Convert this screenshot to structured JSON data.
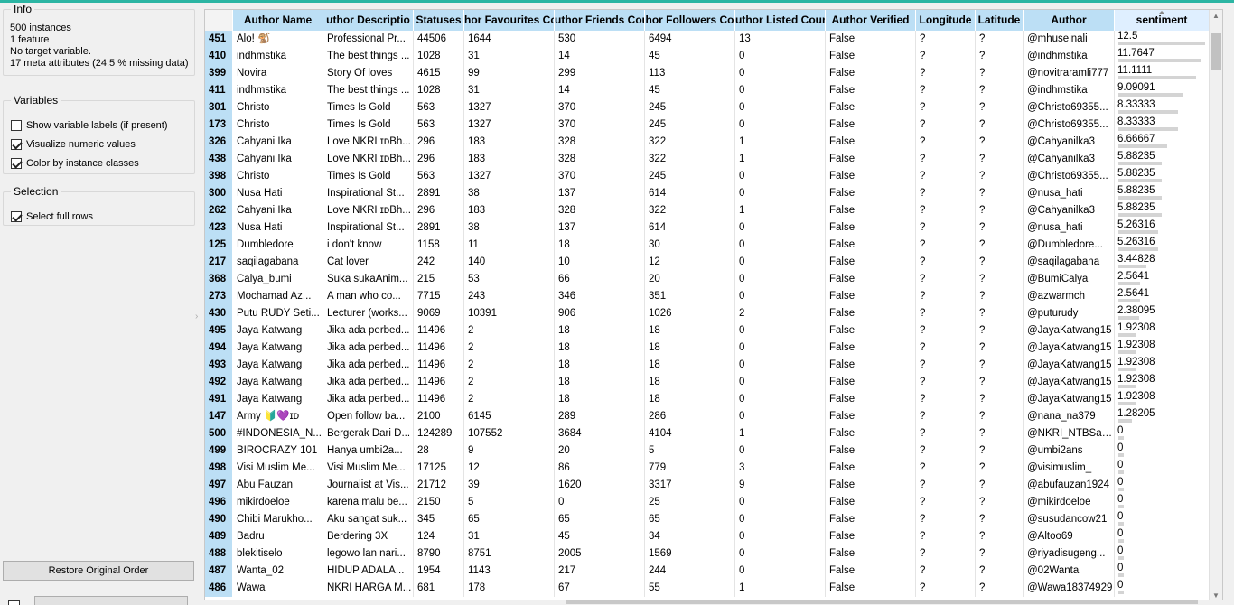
{
  "info": {
    "title": "Info",
    "lines": [
      "500 instances",
      "1 feature",
      "No target variable.",
      "17 meta attributes (24.5 % missing data)"
    ]
  },
  "variables": {
    "title": "Variables",
    "options": [
      {
        "label": "Show variable labels (if present)",
        "checked": false
      },
      {
        "label": "Visualize numeric values",
        "checked": true
      },
      {
        "label": "Color by instance classes",
        "checked": true
      }
    ]
  },
  "selection": {
    "title": "Selection",
    "options": [
      {
        "label": "Select full rows",
        "checked": true
      }
    ]
  },
  "buttons": {
    "restore": "Restore Original Order"
  },
  "table": {
    "columns": [
      "",
      "Author Name",
      "uthor Descriptio",
      "Statuses",
      "hor Favourites Co",
      "uthor Friends Cou",
      "hor Followers Co",
      "uthor Listed Coun",
      "Author Verified",
      "Longitude",
      "Latitude",
      "Author",
      "sentiment"
    ],
    "sentiment_max": 12.5,
    "rows": [
      [
        "451",
        "Alo! 🐒",
        "Professional Pr...",
        "44506",
        "1644",
        "530",
        "6494",
        "13",
        "False",
        "?",
        "?",
        "@mhuseinali",
        "12.5"
      ],
      [
        "410",
        "indhmstika",
        "The best things ...",
        "1028",
        "31",
        "14",
        "45",
        "0",
        "False",
        "?",
        "?",
        "@indhmstika",
        "11.7647"
      ],
      [
        "399",
        "Novira",
        "Story Of loves",
        "4615",
        "99",
        "299",
        "113",
        "0",
        "False",
        "?",
        "?",
        "@novitraramli777",
        "11.1111"
      ],
      [
        "411",
        "indhmstika",
        "The best things ...",
        "1028",
        "31",
        "14",
        "45",
        "0",
        "False",
        "?",
        "?",
        "@indhmstika",
        "9.09091"
      ],
      [
        "301",
        "Christo",
        "Times Is Gold",
        "563",
        "1327",
        "370",
        "245",
        "0",
        "False",
        "?",
        "?",
        "@Christo69355...",
        "8.33333"
      ],
      [
        "173",
        "Christo",
        "Times Is Gold",
        "563",
        "1327",
        "370",
        "245",
        "0",
        "False",
        "?",
        "?",
        "@Christo69355...",
        "8.33333"
      ],
      [
        "326",
        "Cahyani Ika",
        "Love NKRI ɪᴅBh...",
        "296",
        "183",
        "328",
        "322",
        "1",
        "False",
        "?",
        "?",
        "@Cahyanilka3",
        "6.66667"
      ],
      [
        "438",
        "Cahyani Ika",
        "Love NKRI ɪᴅBh...",
        "296",
        "183",
        "328",
        "322",
        "1",
        "False",
        "?",
        "?",
        "@Cahyanilka3",
        "5.88235"
      ],
      [
        "398",
        "Christo",
        "Times Is Gold",
        "563",
        "1327",
        "370",
        "245",
        "0",
        "False",
        "?",
        "?",
        "@Christo69355...",
        "5.88235"
      ],
      [
        "300",
        "Nusa Hati",
        "Inspirational St...",
        "2891",
        "38",
        "137",
        "614",
        "0",
        "False",
        "?",
        "?",
        "@nusa_hati",
        "5.88235"
      ],
      [
        "262",
        "Cahyani Ika",
        "Love NKRI ɪᴅBh...",
        "296",
        "183",
        "328",
        "322",
        "1",
        "False",
        "?",
        "?",
        "@Cahyanilka3",
        "5.88235"
      ],
      [
        "423",
        "Nusa Hati",
        "Inspirational St...",
        "2891",
        "38",
        "137",
        "614",
        "0",
        "False",
        "?",
        "?",
        "@nusa_hati",
        "5.26316"
      ],
      [
        "125",
        "Dumbledore",
        "i don't know",
        "1158",
        "11",
        "18",
        "30",
        "0",
        "False",
        "?",
        "?",
        "@Dumbledore...",
        "5.26316"
      ],
      [
        "217",
        "saqilagabana",
        "Cat lover",
        "242",
        "140",
        "10",
        "12",
        "0",
        "False",
        "?",
        "?",
        "@saqilagabana",
        "3.44828"
      ],
      [
        "368",
        "Calya_bumi",
        "Suka sukaAnim...",
        "215",
        "53",
        "66",
        "20",
        "0",
        "False",
        "?",
        "?",
        "@BumiCalya",
        "2.5641"
      ],
      [
        "273",
        "Mochamad Az...",
        "A man who co...",
        "7715",
        "243",
        "346",
        "351",
        "0",
        "False",
        "?",
        "?",
        "@azwarmch",
        "2.5641"
      ],
      [
        "430",
        "Putu RUDY Seti...",
        "Lecturer (works...",
        "9069",
        "10391",
        "906",
        "1026",
        "2",
        "False",
        "?",
        "?",
        "@puturudy",
        "2.38095"
      ],
      [
        "495",
        "Jaya Katwang",
        "Jika ada perbed...",
        "11496",
        "2",
        "18",
        "18",
        "0",
        "False",
        "?",
        "?",
        "@JayaKatwang15",
        "1.92308"
      ],
      [
        "494",
        "Jaya Katwang",
        "Jika ada perbed...",
        "11496",
        "2",
        "18",
        "18",
        "0",
        "False",
        "?",
        "?",
        "@JayaKatwang15",
        "1.92308"
      ],
      [
        "493",
        "Jaya Katwang",
        "Jika ada perbed...",
        "11496",
        "2",
        "18",
        "18",
        "0",
        "False",
        "?",
        "?",
        "@JayaKatwang15",
        "1.92308"
      ],
      [
        "492",
        "Jaya Katwang",
        "Jika ada perbed...",
        "11496",
        "2",
        "18",
        "18",
        "0",
        "False",
        "?",
        "?",
        "@JayaKatwang15",
        "1.92308"
      ],
      [
        "491",
        "Jaya Katwang",
        "Jika ada perbed...",
        "11496",
        "2",
        "18",
        "18",
        "0",
        "False",
        "?",
        "?",
        "@JayaKatwang15",
        "1.92308"
      ],
      [
        "147",
        "Army 🔰💜ɪᴅ",
        "Open follow ba...",
        "2100",
        "6145",
        "289",
        "286",
        "0",
        "False",
        "?",
        "?",
        "@nana_na379",
        "1.28205"
      ],
      [
        "500",
        "#INDONESIA_N...",
        "Bergerak Dari D...",
        "124289",
        "107552",
        "3684",
        "4104",
        "1",
        "False",
        "?",
        "?",
        "@NKRI_NTBSas...",
        "0"
      ],
      [
        "499",
        "BIROCRAZY 101",
        "Hanya umbi2a...",
        "28",
        "9",
        "20",
        "5",
        "0",
        "False",
        "?",
        "?",
        "@umbi2ans",
        "0"
      ],
      [
        "498",
        "Visi Muslim Me...",
        "Visi Muslim Me...",
        "17125",
        "12",
        "86",
        "779",
        "3",
        "False",
        "?",
        "?",
        "@visimuslim_",
        "0"
      ],
      [
        "497",
        "Abu Fauzan",
        "Journalist at Vis...",
        "21712",
        "39",
        "1620",
        "3317",
        "9",
        "False",
        "?",
        "?",
        "@abufauzan1924",
        "0"
      ],
      [
        "496",
        "mikirdoeloe",
        "karena malu be...",
        "2150",
        "5",
        "0",
        "25",
        "0",
        "False",
        "?",
        "?",
        "@mikirdoeloe",
        "0"
      ],
      [
        "490",
        "Chibi Marukho...",
        "Aku sangat suk...",
        "345",
        "65",
        "65",
        "65",
        "0",
        "False",
        "?",
        "?",
        "@susudancow21",
        "0"
      ],
      [
        "489",
        "Badru",
        "Berdering 3X",
        "124",
        "31",
        "45",
        "34",
        "0",
        "False",
        "?",
        "?",
        "@Altoo69",
        "0"
      ],
      [
        "488",
        "blekitiselo",
        "legowo lan nari...",
        "8790",
        "8751",
        "2005",
        "1569",
        "0",
        "False",
        "?",
        "?",
        "@riyadisugeng...",
        "0"
      ],
      [
        "487",
        "Wanta_02",
        "HIDUP ADALA...",
        "1954",
        "1143",
        "217",
        "244",
        "0",
        "False",
        "?",
        "?",
        "@02Wanta",
        "0"
      ],
      [
        "486",
        "Wawa",
        "NKRI HARGA M...",
        "681",
        "178",
        "67",
        "55",
        "1",
        "False",
        "?",
        "?",
        "@Wawa18374929",
        "0"
      ]
    ]
  }
}
